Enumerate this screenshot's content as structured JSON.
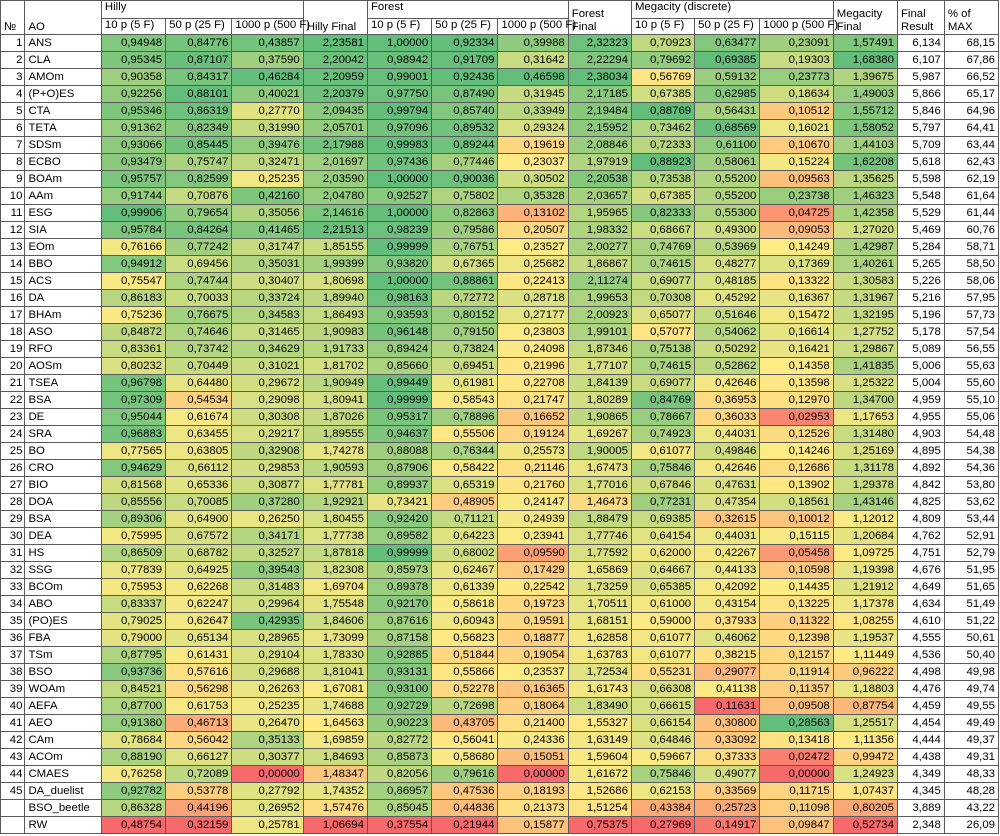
{
  "headers": {
    "no": "№",
    "ao": "AO",
    "hilly": "Hilly",
    "hilly_final": "Hilly Final",
    "forest": "Forest",
    "forest_final": "Forest Final",
    "megacity": "Megacity (discrete)",
    "megacity_final": "Megacity Final",
    "final_result": "Final Result",
    "pct_max": "% of MAX",
    "sub": [
      "10 p (5 F)",
      "50 p (25 F)",
      "1000 p (500 F)"
    ]
  },
  "rows": [
    {
      "no": "1",
      "ao": "ANS",
      "v": [
        "0,94948",
        "0,84776",
        "0,43857",
        "2,23581",
        "1,00000",
        "0,92334",
        "0,39988",
        "2,32323",
        "0,70923",
        "0,63477",
        "0,23091",
        "1,57491",
        "6,134",
        "68,15"
      ]
    },
    {
      "no": "2",
      "ao": "CLA",
      "v": [
        "0,95345",
        "0,87107",
        "0,37590",
        "2,20042",
        "0,98942",
        "0,91709",
        "0,31642",
        "2,22294",
        "0,79692",
        "0,69385",
        "0,19303",
        "1,68380",
        "6,107",
        "67,86"
      ]
    },
    {
      "no": "3",
      "ao": "AMOm",
      "v": [
        "0,90358",
        "0,84317",
        "0,46284",
        "2,20959",
        "0,99001",
        "0,92436",
        "0,46598",
        "2,38034",
        "0,56769",
        "0,59132",
        "0,23773",
        "1,39675",
        "5,987",
        "66,52"
      ]
    },
    {
      "no": "4",
      "ao": "(P+O)ES",
      "v": [
        "0,92256",
        "0,88101",
        "0,40021",
        "2,20379",
        "0,97750",
        "0,87490",
        "0,31945",
        "2,17185",
        "0,67385",
        "0,62985",
        "0,18634",
        "1,49003",
        "5,866",
        "65,17"
      ]
    },
    {
      "no": "5",
      "ao": "CTA",
      "v": [
        "0,95346",
        "0,86319",
        "0,27770",
        "2,09435",
        "0,99794",
        "0,85740",
        "0,33949",
        "2,19484",
        "0,88769",
        "0,56431",
        "0,10512",
        "1,55712",
        "5,846",
        "64,96"
      ]
    },
    {
      "no": "6",
      "ao": "TETA",
      "v": [
        "0,91362",
        "0,82349",
        "0,31990",
        "2,05701",
        "0,97096",
        "0,89532",
        "0,29324",
        "2,15952",
        "0,73462",
        "0,68569",
        "0,16021",
        "1,58052",
        "5,797",
        "64,41"
      ]
    },
    {
      "no": "7",
      "ao": "SDSm",
      "v": [
        "0,93066",
        "0,85445",
        "0,39476",
        "2,17988",
        "0,99983",
        "0,89244",
        "0,19619",
        "2,08846",
        "0,72333",
        "0,61100",
        "0,10670",
        "1,44103",
        "5,709",
        "63,44"
      ]
    },
    {
      "no": "8",
      "ao": "ECBO",
      "v": [
        "0,93479",
        "0,75747",
        "0,32471",
        "2,01697",
        "0,97436",
        "0,77446",
        "0,23037",
        "1,97919",
        "0,88923",
        "0,58061",
        "0,15224",
        "1,62208",
        "5,618",
        "62,43"
      ]
    },
    {
      "no": "9",
      "ao": "BOAm",
      "v": [
        "0,95757",
        "0,82599",
        "0,25235",
        "2,03590",
        "1,00000",
        "0,90036",
        "0,30502",
        "2,20538",
        "0,73538",
        "0,55200",
        "0,09563",
        "1,35625",
        "5,598",
        "62,19"
      ]
    },
    {
      "no": "10",
      "ao": "AAm",
      "v": [
        "0,91744",
        "0,70876",
        "0,42160",
        "2,04780",
        "0,92527",
        "0,75802",
        "0,35328",
        "2,03657",
        "0,67385",
        "0,55200",
        "0,23738",
        "1,46323",
        "5,548",
        "61,64"
      ]
    },
    {
      "no": "11",
      "ao": "ESG",
      "v": [
        "0,99906",
        "0,79654",
        "0,35056",
        "2,14616",
        "1,00000",
        "0,82863",
        "0,13102",
        "1,95965",
        "0,82333",
        "0,55300",
        "0,04725",
        "1,42358",
        "5,529",
        "61,44"
      ]
    },
    {
      "no": "12",
      "ao": "SIA",
      "v": [
        "0,95784",
        "0,84264",
        "0,41465",
        "2,21513",
        "0,98239",
        "0,79586",
        "0,20507",
        "1,98332",
        "0,68667",
        "0,49300",
        "0,09053",
        "1,27020",
        "5,469",
        "60,76"
      ]
    },
    {
      "no": "13",
      "ao": "EOm",
      "v": [
        "0,76166",
        "0,77242",
        "0,31747",
        "1,85155",
        "0,99999",
        "0,76751",
        "0,23527",
        "2,00277",
        "0,74769",
        "0,53969",
        "0,14249",
        "1,42987",
        "5,284",
        "58,71"
      ]
    },
    {
      "no": "14",
      "ao": "BBO",
      "v": [
        "0,94912",
        "0,69456",
        "0,35031",
        "1,99399",
        "0,93820",
        "0,67365",
        "0,25682",
        "1,86867",
        "0,74615",
        "0,48277",
        "0,17369",
        "1,40261",
        "5,265",
        "58,50"
      ]
    },
    {
      "no": "15",
      "ao": "ACS",
      "v": [
        "0,75547",
        "0,74744",
        "0,30407",
        "1,80698",
        "1,00000",
        "0,88861",
        "0,22413",
        "2,11274",
        "0,69077",
        "0,48185",
        "0,13322",
        "1,30583",
        "5,226",
        "58,06"
      ]
    },
    {
      "no": "16",
      "ao": "DA",
      "v": [
        "0,86183",
        "0,70033",
        "0,33724",
        "1,89940",
        "0,98163",
        "0,72772",
        "0,28718",
        "1,99653",
        "0,70308",
        "0,45292",
        "0,16367",
        "1,31967",
        "5,216",
        "57,95"
      ]
    },
    {
      "no": "17",
      "ao": "BHAm",
      "v": [
        "0,75236",
        "0,76675",
        "0,34583",
        "1,86493",
        "0,93593",
        "0,80152",
        "0,27177",
        "2,00923",
        "0,65077",
        "0,51646",
        "0,15472",
        "1,32195",
        "5,196",
        "57,73"
      ]
    },
    {
      "no": "18",
      "ao": "ASO",
      "v": [
        "0,84872",
        "0,74646",
        "0,31465",
        "1,90983",
        "0,96148",
        "0,79150",
        "0,23803",
        "1,99101",
        "0,57077",
        "0,54062",
        "0,16614",
        "1,27752",
        "5,178",
        "57,54"
      ]
    },
    {
      "no": "19",
      "ao": "RFO",
      "v": [
        "0,83361",
        "0,73742",
        "0,34629",
        "1,91733",
        "0,89424",
        "0,73824",
        "0,24098",
        "1,87346",
        "0,75138",
        "0,50292",
        "0,16421",
        "1,29867",
        "5,089",
        "56,55"
      ]
    },
    {
      "no": "20",
      "ao": "AOSm",
      "v": [
        "0,80232",
        "0,70449",
        "0,31021",
        "1,81702",
        "0,85660",
        "0,69451",
        "0,21996",
        "1,77107",
        "0,74615",
        "0,52862",
        "0,14358",
        "1,41835",
        "5,006",
        "55,63"
      ]
    },
    {
      "no": "21",
      "ao": "TSEA",
      "v": [
        "0,96798",
        "0,64480",
        "0,29672",
        "1,90949",
        "0,99449",
        "0,61981",
        "0,22708",
        "1,84139",
        "0,69077",
        "0,42646",
        "0,13598",
        "1,25322",
        "5,004",
        "55,60"
      ]
    },
    {
      "no": "22",
      "ao": "BSA",
      "v": [
        "0,97309",
        "0,54534",
        "0,29098",
        "1,80941",
        "0,99999",
        "0,58543",
        "0,21747",
        "1,80289",
        "0,84769",
        "0,36953",
        "0,12970",
        "1,34700",
        "4,959",
        "55,10"
      ]
    },
    {
      "no": "23",
      "ao": "DE",
      "v": [
        "0,95044",
        "0,61674",
        "0,30308",
        "1,87026",
        "0,95317",
        "0,78896",
        "0,16652",
        "1,90865",
        "0,78667",
        "0,36033",
        "0,02953",
        "1,17653",
        "4,955",
        "55,06"
      ]
    },
    {
      "no": "24",
      "ao": "SRA",
      "v": [
        "0,96883",
        "0,63455",
        "0,29217",
        "1,89555",
        "0,94637",
        "0,55506",
        "0,19124",
        "1,69267",
        "0,74923",
        "0,44031",
        "0,12526",
        "1,31480",
        "4,903",
        "54,48"
      ]
    },
    {
      "no": "25",
      "ao": "BO",
      "v": [
        "0,77565",
        "0,63805",
        "0,32908",
        "1,74278",
        "0,88088",
        "0,76344",
        "0,25573",
        "1,90005",
        "0,61077",
        "0,49846",
        "0,14246",
        "1,25169",
        "4,895",
        "54,38"
      ]
    },
    {
      "no": "26",
      "ao": "CRO",
      "v": [
        "0,94629",
        "0,66112",
        "0,29853",
        "1,90593",
        "0,87906",
        "0,58422",
        "0,21146",
        "1,67473",
        "0,75846",
        "0,42646",
        "0,12686",
        "1,31178",
        "4,892",
        "54,36"
      ]
    },
    {
      "no": "27",
      "ao": "BIO",
      "v": [
        "0,81568",
        "0,65336",
        "0,30877",
        "1,77781",
        "0,89937",
        "0,65319",
        "0,21760",
        "1,77016",
        "0,67846",
        "0,47631",
        "0,13902",
        "1,29378",
        "4,842",
        "53,80"
      ]
    },
    {
      "no": "28",
      "ao": "DOA",
      "v": [
        "0,85556",
        "0,70085",
        "0,37280",
        "1,92921",
        "0,73421",
        "0,48905",
        "0,24147",
        "1,46473",
        "0,77231",
        "0,47354",
        "0,18561",
        "1,43146",
        "4,825",
        "53,62"
      ]
    },
    {
      "no": "29",
      "ao": "BSA",
      "v": [
        "0,89306",
        "0,64900",
        "0,26250",
        "1,80455",
        "0,92420",
        "0,71121",
        "0,24939",
        "1,88479",
        "0,69385",
        "0,32615",
        "0,10012",
        "1,12012",
        "4,809",
        "53,44"
      ]
    },
    {
      "no": "30",
      "ao": "DEA",
      "v": [
        "0,75995",
        "0,67572",
        "0,34171",
        "1,77738",
        "0,89582",
        "0,64223",
        "0,23941",
        "1,77746",
        "0,64154",
        "0,44031",
        "0,15115",
        "1,20684",
        "4,762",
        "52,91"
      ]
    },
    {
      "no": "31",
      "ao": "HS",
      "v": [
        "0,86509",
        "0,68782",
        "0,32527",
        "1,87818",
        "0,99999",
        "0,68002",
        "0,09590",
        "1,77592",
        "0,62000",
        "0,42267",
        "0,05458",
        "1,09725",
        "4,751",
        "52,79"
      ]
    },
    {
      "no": "32",
      "ao": "SSG",
      "v": [
        "0,77839",
        "0,64925",
        "0,39543",
        "1,82308",
        "0,85973",
        "0,62467",
        "0,17429",
        "1,65869",
        "0,64667",
        "0,44133",
        "0,10598",
        "1,19398",
        "4,676",
        "51,95"
      ]
    },
    {
      "no": "33",
      "ao": "BCOm",
      "v": [
        "0,75953",
        "0,62268",
        "0,31483",
        "1,69704",
        "0,89378",
        "0,61339",
        "0,22542",
        "1,73259",
        "0,65385",
        "0,42092",
        "0,14435",
        "1,21912",
        "4,649",
        "51,65"
      ]
    },
    {
      "no": "34",
      "ao": "ABO",
      "v": [
        "0,83337",
        "0,62247",
        "0,29964",
        "1,75548",
        "0,92170",
        "0,58618",
        "0,19723",
        "1,70511",
        "0,61000",
        "0,43154",
        "0,13225",
        "1,17378",
        "4,634",
        "51,49"
      ]
    },
    {
      "no": "35",
      "ao": "(PO)ES",
      "v": [
        "0,79025",
        "0,62647",
        "0,42935",
        "1,84606",
        "0,87616",
        "0,60943",
        "0,19591",
        "1,68151",
        "0,59000",
        "0,37933",
        "0,11322",
        "1,08255",
        "4,610",
        "51,22"
      ]
    },
    {
      "no": "36",
      "ao": "FBA",
      "v": [
        "0,79000",
        "0,65134",
        "0,28965",
        "1,73099",
        "0,87158",
        "0,56823",
        "0,18877",
        "1,62858",
        "0,61077",
        "0,46062",
        "0,12398",
        "1,19537",
        "4,555",
        "50,61"
      ]
    },
    {
      "no": "37",
      "ao": "TSm",
      "v": [
        "0,87795",
        "0,61431",
        "0,29104",
        "1,78330",
        "0,92885",
        "0,51844",
        "0,19054",
        "1,63783",
        "0,61077",
        "0,38215",
        "0,12157",
        "1,11449",
        "4,536",
        "50,40"
      ]
    },
    {
      "no": "38",
      "ao": "BSO",
      "v": [
        "0,93736",
        "0,57616",
        "0,29688",
        "1,81041",
        "0,93131",
        "0,55866",
        "0,23537",
        "1,72534",
        "0,55231",
        "0,29077",
        "0,11914",
        "0,96222",
        "4,498",
        "49,98"
      ]
    },
    {
      "no": "39",
      "ao": "WOAm",
      "v": [
        "0,84521",
        "0,56298",
        "0,26263",
        "1,67081",
        "0,93100",
        "0,52278",
        "0,16365",
        "1,61743",
        "0,66308",
        "0,41138",
        "0,11357",
        "1,18803",
        "4,476",
        "49,74"
      ]
    },
    {
      "no": "40",
      "ao": "AEFA",
      "v": [
        "0,87700",
        "0,61753",
        "0,25235",
        "1,74688",
        "0,92729",
        "0,72698",
        "0,18064",
        "1,83490",
        "0,66615",
        "0,11631",
        "0,09508",
        "0,87754",
        "4,459",
        "49,55"
      ]
    },
    {
      "no": "41",
      "ao": "AEO",
      "v": [
        "0,91380",
        "0,46713",
        "0,26470",
        "1,64563",
        "0,90223",
        "0,43705",
        "0,21400",
        "1,55327",
        "0,66154",
        "0,30800",
        "0,28563",
        "1,25517",
        "4,454",
        "49,49"
      ]
    },
    {
      "no": "42",
      "ao": "CAm",
      "v": [
        "0,78684",
        "0,56042",
        "0,35133",
        "1,69859",
        "0,82772",
        "0,56041",
        "0,24336",
        "1,63149",
        "0,64846",
        "0,33092",
        "0,13418",
        "1,11356",
        "4,444",
        "49,37"
      ]
    },
    {
      "no": "43",
      "ao": "ACOm",
      "v": [
        "0,88190",
        "0,66127",
        "0,30377",
        "1,84693",
        "0,85873",
        "0,58680",
        "0,15051",
        "1,59604",
        "0,59667",
        "0,37333",
        "0,02472",
        "0,99472",
        "4,438",
        "49,31"
      ]
    },
    {
      "no": "44",
      "ao": "CMAES",
      "v": [
        "0,76258",
        "0,72089",
        "0,00000",
        "1,48347",
        "0,82056",
        "0,79616",
        "0,00000",
        "1,61672",
        "0,75846",
        "0,49077",
        "0,00000",
        "1,24923",
        "4,349",
        "48,33"
      ]
    },
    {
      "no": "45",
      "ao": "DA_duelist",
      "v": [
        "0,92782",
        "0,53778",
        "0,27792",
        "1,74352",
        "0,86957",
        "0,47536",
        "0,18193",
        "1,52686",
        "0,62153",
        "0,33569",
        "0,11715",
        "1,07437",
        "4,345",
        "48,28"
      ]
    },
    {
      "no": "",
      "ao": "BSO_beetle",
      "v": [
        "0,86328",
        "0,44196",
        "0,26952",
        "1,57476",
        "0,85045",
        "0,44836",
        "0,21373",
        "1,51254",
        "0,43384",
        "0,25723",
        "0,11098",
        "0,80205",
        "3,889",
        "43,22"
      ]
    },
    {
      "no": "",
      "ao": "RW",
      "v": [
        "0,48754",
        "0,32159",
        "0,25781",
        "1,06694",
        "0,37554",
        "0,21944",
        "0,15877",
        "0,75375",
        "0,27969",
        "0,14917",
        "0,09847",
        "0,52734",
        "2,348",
        "26,09"
      ]
    }
  ],
  "colors": {
    "best_green": "#63be7b",
    "mid_yellow": "#ffeb84",
    "worst_red": "#f8696b"
  }
}
